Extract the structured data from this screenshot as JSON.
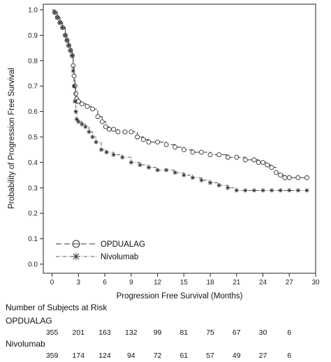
{
  "chart_data": {
    "type": "line",
    "title": "",
    "xlabel": "Progression Free Survival (Months)",
    "ylabel": "Probability of Progression Free Survival",
    "xlim": [
      -1,
      30
    ],
    "ylim": [
      0,
      1.0
    ],
    "x_ticks": [
      0,
      3,
      6,
      9,
      12,
      15,
      18,
      21,
      24,
      27,
      30
    ],
    "y_ticks": [
      0.0,
      0.1,
      0.2,
      0.3,
      0.4,
      0.5,
      0.6,
      0.7,
      0.8,
      0.9,
      1.0
    ],
    "x_tick_labels": [
      "0",
      "3",
      "6",
      "9",
      "12",
      "15",
      "18",
      "21",
      "24",
      "27",
      "30"
    ],
    "y_tick_labels": [
      "0.0",
      "0.1",
      "0.2",
      "0.3",
      "0.4",
      "0.5",
      "0.6",
      "0.7",
      "0.8",
      "0.9",
      "1.0"
    ],
    "grid": false,
    "legend_position": "bottom-left",
    "series": [
      {
        "name": "OPDUALAG",
        "line_style": "long-dash",
        "marker": "circle",
        "x": [
          0,
          0.3,
          0.6,
          0.9,
          1.2,
          1.5,
          1.7,
          1.9,
          2.1,
          2.3,
          2.4,
          2.5,
          2.6,
          2.7,
          2.8,
          2.9,
          3.0,
          3.4,
          4.0,
          4.6,
          5.2,
          5.7,
          6.1,
          6.5,
          7.0,
          7.5,
          8.3,
          9.0,
          9.7,
          10.4,
          11.0,
          12.0,
          13.0,
          14.0,
          15.0,
          16.0,
          17.0,
          18.0,
          19.0,
          20.0,
          21.0,
          22.0,
          23.0,
          23.5,
          24.0,
          24.5,
          25.0,
          25.5,
          26.0,
          26.5,
          27.0,
          28.0,
          29.0
        ],
        "y": [
          1.0,
          0.99,
          0.97,
          0.95,
          0.93,
          0.9,
          0.88,
          0.86,
          0.84,
          0.82,
          0.78,
          0.74,
          0.7,
          0.67,
          0.65,
          0.64,
          0.64,
          0.63,
          0.62,
          0.61,
          0.58,
          0.56,
          0.54,
          0.53,
          0.53,
          0.52,
          0.52,
          0.52,
          0.5,
          0.49,
          0.48,
          0.48,
          0.47,
          0.46,
          0.45,
          0.44,
          0.44,
          0.43,
          0.43,
          0.42,
          0.42,
          0.41,
          0.41,
          0.4,
          0.4,
          0.39,
          0.38,
          0.36,
          0.35,
          0.34,
          0.34,
          0.34,
          0.34
        ]
      },
      {
        "name": "Nivolumab",
        "line_style": "dash-dot",
        "marker": "asterisk",
        "x": [
          0,
          0.3,
          0.6,
          0.9,
          1.2,
          1.5,
          1.7,
          1.9,
          2.1,
          2.3,
          2.4,
          2.5,
          2.6,
          2.7,
          2.8,
          3.0,
          3.4,
          3.8,
          4.2,
          4.6,
          5.0,
          5.6,
          6.2,
          7.0,
          8.0,
          9.0,
          10.0,
          11.0,
          12.0,
          13.0,
          14.0,
          15.0,
          16.0,
          17.0,
          18.0,
          19.0,
          20.0,
          21.0,
          22.0,
          23.0,
          24.0,
          25.0,
          26.0,
          27.0,
          28.0,
          29.0
        ],
        "y": [
          1.0,
          0.99,
          0.97,
          0.95,
          0.93,
          0.9,
          0.88,
          0.86,
          0.84,
          0.82,
          0.76,
          0.7,
          0.64,
          0.6,
          0.57,
          0.56,
          0.55,
          0.54,
          0.52,
          0.5,
          0.48,
          0.45,
          0.44,
          0.43,
          0.42,
          0.4,
          0.39,
          0.38,
          0.37,
          0.37,
          0.36,
          0.35,
          0.34,
          0.33,
          0.32,
          0.31,
          0.3,
          0.29,
          0.29,
          0.29,
          0.29,
          0.29,
          0.29,
          0.29,
          0.29,
          0.29
        ]
      }
    ]
  },
  "risk_table": {
    "title": "Number of Subjects at Risk",
    "time_points": [
      0,
      3,
      6,
      9,
      12,
      15,
      18,
      21,
      24,
      27
    ],
    "groups": [
      {
        "name": "OPDUALAG",
        "values": [
          "355",
          "201",
          "163",
          "132",
          "99",
          "81",
          "75",
          "67",
          "30",
          "6"
        ]
      },
      {
        "name": "Nivolumab",
        "values": [
          "359",
          "174",
          "124",
          "94",
          "72",
          "61",
          "57",
          "49",
          "27",
          "6"
        ]
      }
    ]
  }
}
